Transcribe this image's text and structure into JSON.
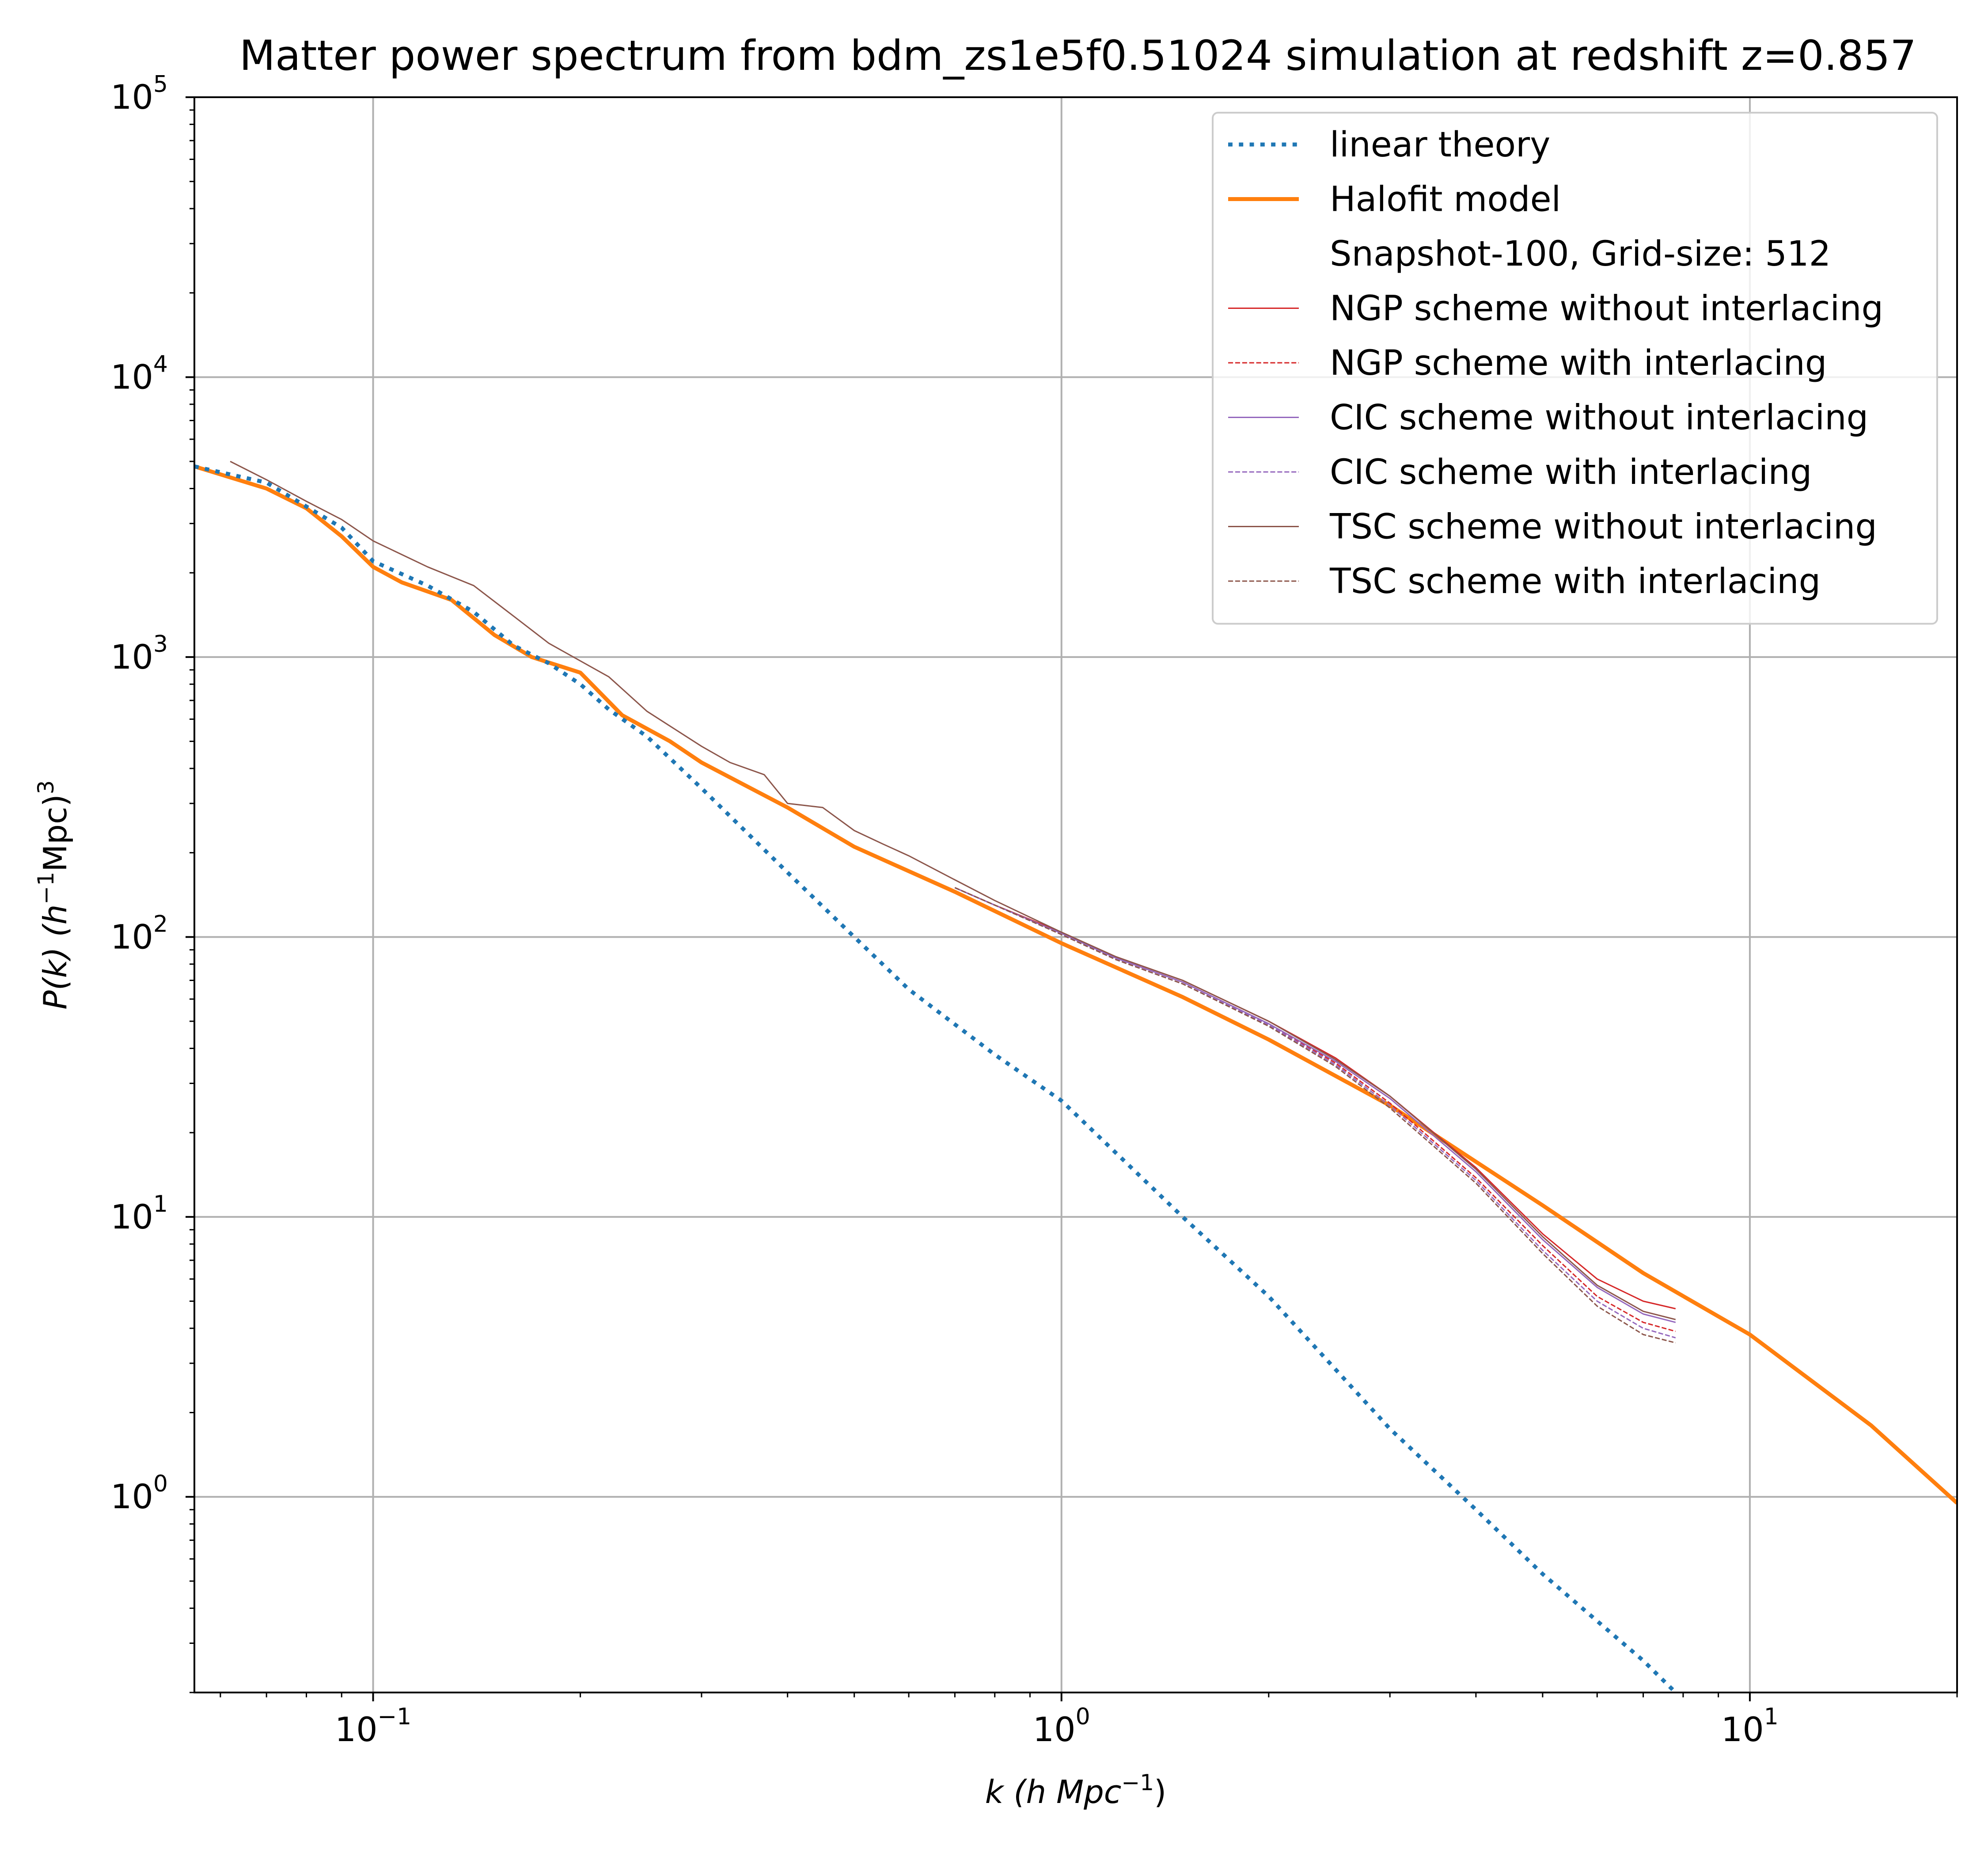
{
  "chart_data": {
    "type": "line",
    "title": "Matter power spectrum from bdm_zs1e5f0.51024 simulation at redshift z=0.857",
    "xlabel": {
      "main": "k  (h Mpc",
      "sup": "−1",
      "end": ")"
    },
    "ylabel": {
      "start": "P(k)  (h",
      "sup1": "−1",
      "mid": "Mpc)",
      "sup2": "3"
    },
    "xscale": "log",
    "yscale": "log",
    "xlim": [
      0.055,
      20
    ],
    "ylim": [
      0.2,
      100000
    ],
    "grid": true,
    "legend_position": "top-right",
    "x_ticks": [
      {
        "value": 0.1,
        "base": "10",
        "exp": "−1"
      },
      {
        "value": 1,
        "base": "10",
        "exp": "0"
      },
      {
        "value": 10,
        "base": "10",
        "exp": "1"
      }
    ],
    "y_ticks": [
      {
        "value": 1,
        "base": "10",
        "exp": "0"
      },
      {
        "value": 10,
        "base": "10",
        "exp": "1"
      },
      {
        "value": 100,
        "base": "10",
        "exp": "2"
      },
      {
        "value": 1000,
        "base": "10",
        "exp": "3"
      },
      {
        "value": 10000,
        "base": "10",
        "exp": "4"
      },
      {
        "value": 100000,
        "base": "10",
        "exp": "5"
      }
    ],
    "legend_entries": [
      {
        "label": "linear theory",
        "color": "#1f77b4",
        "style": "dotted",
        "width": 9
      },
      {
        "label": "Halofit model",
        "color": "#ff7f0e",
        "style": "solid",
        "width": 9
      },
      {
        "label": "Snapshot-100, Grid-size: 512",
        "color": "none",
        "style": "none",
        "width": 0
      },
      {
        "label": "NGP scheme without interlacing",
        "color": "#d62728",
        "style": "solid",
        "width": 3
      },
      {
        "label": "NGP scheme with interlacing",
        "color": "#d62728",
        "style": "dashed",
        "width": 3
      },
      {
        "label": "CIC scheme without interlacing",
        "color": "#9467bd",
        "style": "solid",
        "width": 3
      },
      {
        "label": "CIC scheme with interlacing",
        "color": "#9467bd",
        "style": "dashed",
        "width": 3
      },
      {
        "label": "TSC scheme without interlacing",
        "color": "#8c564b",
        "style": "solid",
        "width": 3
      },
      {
        "label": "TSC scheme with interlacing",
        "color": "#8c564b",
        "style": "dashed",
        "width": 3
      }
    ],
    "series": [
      {
        "name": "linear theory",
        "color": "#1f77b4",
        "style": "dotted",
        "x": [
          0.055,
          0.07,
          0.09,
          0.1,
          0.12,
          0.14,
          0.16,
          0.18,
          0.2,
          0.22,
          0.25,
          0.3,
          0.4,
          0.5,
          0.6,
          0.8,
          1,
          1.5,
          2,
          3,
          4,
          5,
          6,
          7,
          7.8
        ],
        "y": [
          4800,
          4200,
          2900,
          2200,
          1800,
          1450,
          1100,
          950,
          800,
          650,
          520,
          340,
          170,
          100,
          65,
          38,
          26,
          10,
          5.2,
          1.75,
          0.9,
          0.53,
          0.36,
          0.26,
          0.2
        ]
      },
      {
        "name": "Halofit model",
        "color": "#ff7f0e",
        "style": "solid",
        "x": [
          0.055,
          0.07,
          0.08,
          0.09,
          0.1,
          0.11,
          0.13,
          0.15,
          0.17,
          0.2,
          0.23,
          0.27,
          0.3,
          0.4,
          0.5,
          0.7,
          1,
          1.5,
          2,
          3,
          5,
          7,
          10,
          15,
          20
        ],
        "y": [
          4800,
          4000,
          3400,
          2700,
          2100,
          1850,
          1600,
          1200,
          1000,
          880,
          620,
          500,
          420,
          290,
          210,
          145,
          95,
          61,
          43,
          25,
          11,
          6.3,
          3.8,
          1.8,
          0.95
        ]
      },
      {
        "name": "NGP scheme without interlacing",
        "color": "#d62728",
        "style": "solid",
        "x": [
          0.7,
          0.8,
          1,
          1.2,
          1.5,
          2,
          2.5,
          3,
          4,
          5,
          6,
          7,
          7.8
        ],
        "y": [
          150,
          130,
          104,
          85,
          70,
          50,
          37,
          27,
          15,
          8.7,
          6.0,
          5.0,
          4.7
        ]
      },
      {
        "name": "NGP scheme with interlacing",
        "color": "#d62728",
        "style": "dashed",
        "x": [
          0.7,
          0.8,
          1,
          1.2,
          1.5,
          2,
          2.5,
          3,
          4,
          5,
          6,
          7,
          7.8
        ],
        "y": [
          150,
          130,
          103,
          84,
          69,
          49,
          35.5,
          25.5,
          13.8,
          7.9,
          5.2,
          4.2,
          3.9
        ]
      },
      {
        "name": "CIC scheme without interlacing",
        "color": "#9467bd",
        "style": "solid",
        "x": [
          0.7,
          0.8,
          1,
          1.2,
          1.5,
          2,
          2.5,
          3,
          4,
          5,
          6,
          7,
          7.8
        ],
        "y": [
          150,
          130,
          103,
          84,
          69,
          49,
          36,
          26.5,
          14.5,
          8.3,
          5.6,
          4.5,
          4.2
        ]
      },
      {
        "name": "CIC scheme with interlacing",
        "color": "#9467bd",
        "style": "dashed",
        "x": [
          0.7,
          0.8,
          1,
          1.2,
          1.5,
          2,
          2.5,
          3,
          4,
          5,
          6,
          7,
          7.8
        ],
        "y": [
          150,
          130,
          102,
          83,
          68,
          48.5,
          35,
          25,
          13.5,
          7.6,
          5.0,
          4.0,
          3.7
        ]
      },
      {
        "name": "TSC scheme without interlacing",
        "color": "#8c564b",
        "style": "solid",
        "x": [
          0.062,
          0.07,
          0.08,
          0.09,
          0.1,
          0.12,
          0.14,
          0.16,
          0.18,
          0.22,
          0.25,
          0.3,
          0.33,
          0.37,
          0.4,
          0.45,
          0.5,
          0.55,
          0.6,
          0.7,
          0.8,
          1,
          1.2,
          1.5,
          2,
          2.5,
          3,
          4,
          5,
          6,
          7,
          7.8
        ],
        "y": [
          5000,
          4300,
          3600,
          3100,
          2600,
          2100,
          1800,
          1400,
          1120,
          850,
          640,
          480,
          420,
          380,
          300,
          290,
          240,
          215,
          195,
          160,
          135,
          104,
          85,
          70,
          50,
          36.5,
          27,
          14.8,
          8.5,
          5.7,
          4.6,
          4.3
        ]
      },
      {
        "name": "TSC scheme with interlacing",
        "color": "#8c564b",
        "style": "dashed",
        "x": [
          0.7,
          0.8,
          1,
          1.2,
          1.5,
          2,
          2.5,
          3,
          4,
          5,
          6,
          7,
          7.8
        ],
        "y": [
          150,
          130,
          102,
          83,
          68,
          48,
          34.5,
          24.5,
          13.2,
          7.4,
          4.8,
          3.8,
          3.55
        ]
      }
    ]
  }
}
